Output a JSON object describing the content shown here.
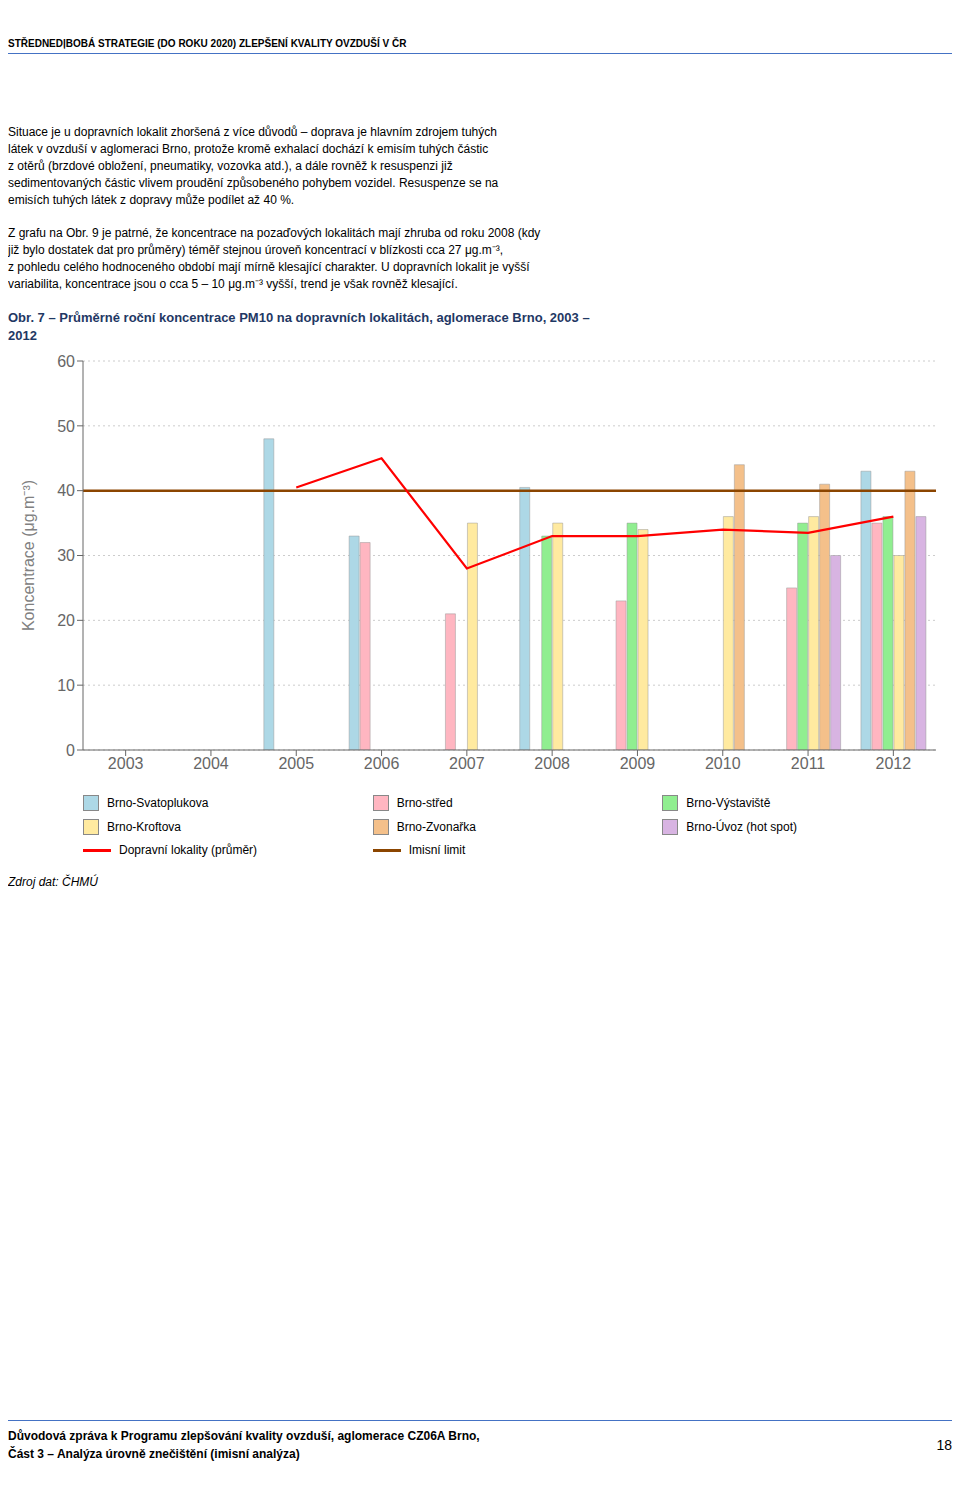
{
  "header": "STŘEDNEDļBOBÁ STRATEGIE (DO ROKU 2020) ZLEPŠENÍ KVALITY OVZDUŠÍ V ČR",
  "body_text": [
    [
      "Situace je u dopravních lokalit zhoršená z více důvodů – doprava je hlavním zdrojem tuhých",
      "látek v ovzduší v aglomeraci Brno, protože kromě exhalací dochází k emisím tuhých částic",
      "z otěrů (brzdové obložení, pneumatiky, vozovka atd.), a dále rovněž k resuspenzi již",
      "sedimentovaných částic vlivem proudění způsobeného pohybem vozidel. Resuspenze se na",
      "emisích tuhých látek z dopravy může podílet až 40 %."
    ],
    [
      "Z grafu na Obr. 9 je patrné, že koncentrace na pozaďových lokalitách mají zhruba od roku 2008 (kdy",
      "již bylo dostatek dat pro průměry) téměř stejnou úroveň koncentrací v blízkosti cca 27 μg.m⁻³,",
      "z pohledu celého hodnoceného období mají mírně klesající charakter. U dopravních lokalit je vyšší",
      "variabilita, koncentrace jsou o cca 5 – 10 μg.m⁻³ vyšší, trend je však rovněž klesající."
    ]
  ],
  "source": "Zdroj dat: ČHMÚ",
  "footer": [
    "Důvodová zpráva k Programu zlepšování kvality ovzduší, aglomerace CZ06A Brno,",
    "Část 3 – Analýza úrovně znečištění (imisní analýza)"
  ],
  "page_number": "18",
  "chart_data": {
    "type": "bar",
    "title": "Obr. 7 – Průměrné roční koncentrace PM10 na dopravních lokalitách, aglomerace Brno, 2003 – 2012",
    "categories": [
      2003,
      2004,
      2005,
      2006,
      2007,
      2008,
      2009,
      2010,
      2011,
      2012
    ],
    "series": [
      {
        "name": "Brno-Svatoplukova",
        "type": "bar",
        "color": "#ADD8E6",
        "values": [
          null,
          null,
          48,
          33,
          null,
          40.5,
          null,
          null,
          null,
          43
        ]
      },
      {
        "name": "Brno-střed",
        "type": "bar",
        "color": "#FFB6C1",
        "values": [
          null,
          null,
          null,
          32,
          21,
          null,
          23,
          null,
          25,
          35
        ]
      },
      {
        "name": "Brno-Výstaviště",
        "type": "bar",
        "color": "#90EE90",
        "values": [
          null,
          null,
          null,
          null,
          null,
          33,
          35,
          null,
          35,
          36
        ]
      },
      {
        "name": "Brno-Kroftova",
        "type": "bar",
        "color": "#FFEAA0",
        "values": [
          null,
          null,
          null,
          null,
          35,
          35,
          34,
          36,
          36,
          30
        ]
      },
      {
        "name": "Brno-Zvonařka",
        "type": "bar",
        "color": "#F4C08A",
        "values": [
          null,
          null,
          null,
          null,
          null,
          null,
          null,
          44,
          41,
          43
        ]
      },
      {
        "name": "Brno-Úvoz (hot spot)",
        "type": "bar",
        "color": "#D8B4E2",
        "values": [
          null,
          null,
          null,
          null,
          null,
          null,
          null,
          null,
          30,
          36
        ]
      },
      {
        "name": "Dopravní lokality (průměr)",
        "type": "line",
        "color": "#FF0000",
        "values": [
          null,
          null,
          40.5,
          45,
          28,
          33,
          33,
          34,
          33.5,
          36
        ]
      }
    ],
    "reference_lines": [
      {
        "name": "Imisní limit",
        "value": 40,
        "color": "#8B4500"
      }
    ],
    "ylabel": "Koncentrace (μg.m⁻³)",
    "ylim": [
      0,
      60
    ],
    "yticks": [
      0,
      10,
      20,
      30,
      40,
      50,
      60
    ],
    "grid": true
  }
}
